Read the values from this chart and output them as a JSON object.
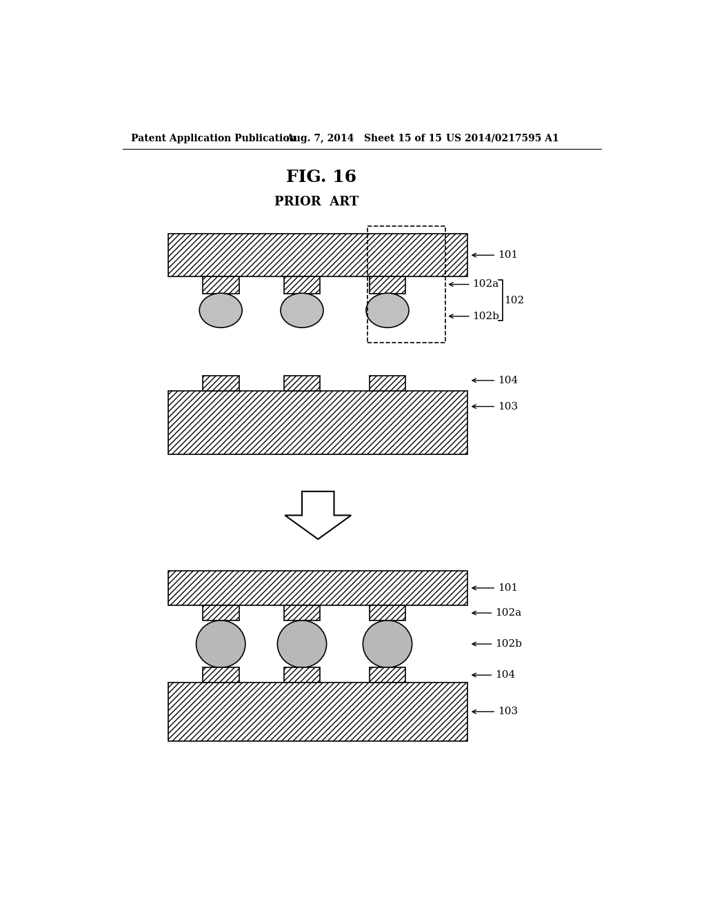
{
  "title": "FIG. 16",
  "subtitle": "PRIOR  ART",
  "header_left": "Patent Application Publication",
  "header_mid": "Aug. 7, 2014   Sheet 15 of 15",
  "header_right": "US 2014/0217595 A1",
  "bg_color": "#ffffff",
  "label_101": "101",
  "label_102": "102",
  "label_102a": "102a",
  "label_102b": "102b",
  "label_103": "103",
  "label_104": "104"
}
